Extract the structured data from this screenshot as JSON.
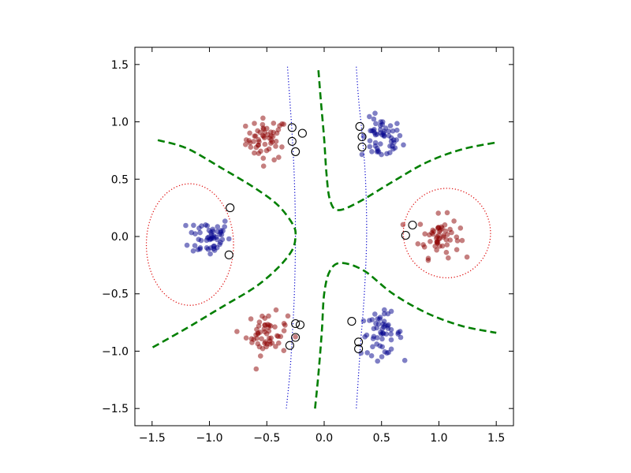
{
  "chart_data": {
    "type": "scatter",
    "title": "",
    "xlabel": "",
    "ylabel": "",
    "xlim": [
      -1.65,
      1.65
    ],
    "ylim": [
      -1.65,
      1.65
    ],
    "xticks": [
      -1.5,
      -1.0,
      -0.5,
      0.0,
      0.5,
      1.0,
      1.5
    ],
    "yticks": [
      -1.5,
      -1.0,
      -0.5,
      0.0,
      0.5,
      1.0,
      1.5
    ],
    "xtick_labels": [
      "−1.5",
      "−1.0",
      "−0.5",
      "0.0",
      "0.5",
      "1.0",
      "1.5"
    ],
    "ytick_labels": [
      "−1.5",
      "−1.0",
      "−0.5",
      "0.0",
      "0.5",
      "1.0",
      "1.5"
    ],
    "grid": false,
    "colors": {
      "red": "#8b0000",
      "blue": "#00008b",
      "decision": "#007f00",
      "margin_red": "#dd0000",
      "margin_blue": "#0000cc"
    },
    "clusters": [
      {
        "class": "red",
        "center": [
          -0.5,
          0.85
        ],
        "count": 55
      },
      {
        "class": "blue",
        "center": [
          0.5,
          0.85
        ],
        "count": 55
      },
      {
        "class": "blue",
        "center": [
          -1.0,
          0.0
        ],
        "count": 55
      },
      {
        "class": "red",
        "center": [
          1.0,
          0.0
        ],
        "count": 55
      },
      {
        "class": "red",
        "center": [
          -0.5,
          -0.85
        ],
        "count": 55
      },
      {
        "class": "blue",
        "center": [
          0.5,
          -0.85
        ],
        "count": 55
      }
    ],
    "support_vectors": [
      [
        -0.28,
        0.95
      ],
      [
        -0.19,
        0.9
      ],
      [
        -0.28,
        0.83
      ],
      [
        -0.25,
        0.74
      ],
      [
        0.31,
        0.96
      ],
      [
        0.33,
        0.87
      ],
      [
        0.33,
        0.78
      ],
      [
        -0.82,
        0.25
      ],
      [
        -0.83,
        -0.16
      ],
      [
        0.77,
        0.1
      ],
      [
        0.71,
        0.01
      ],
      [
        -0.25,
        -0.76
      ],
      [
        -0.21,
        -0.77
      ],
      [
        -0.25,
        -0.88
      ],
      [
        -0.3,
        -0.95
      ],
      [
        0.24,
        -0.74
      ],
      [
        0.3,
        -0.92
      ],
      [
        0.3,
        -0.98
      ]
    ],
    "decision_boundary": [
      [
        [
          -1.45,
          0.84
        ],
        [
          -1.2,
          0.77
        ],
        [
          -0.9,
          0.6
        ],
        [
          -0.6,
          0.42
        ],
        [
          -0.4,
          0.27
        ],
        [
          -0.27,
          0.1
        ],
        [
          -0.25,
          0.0
        ],
        [
          -0.28,
          -0.12
        ],
        [
          -0.4,
          -0.27
        ],
        [
          -0.6,
          -0.44
        ],
        [
          -0.9,
          -0.62
        ],
        [
          -1.2,
          -0.8
        ],
        [
          -1.5,
          -0.97
        ]
      ],
      [
        [
          -0.05,
          1.45
        ],
        [
          -0.03,
          1.2
        ],
        [
          0.0,
          0.85
        ],
        [
          0.02,
          0.55
        ],
        [
          0.05,
          0.32
        ],
        [
          0.12,
          0.23
        ],
        [
          0.3,
          0.3
        ],
        [
          0.6,
          0.48
        ],
        [
          0.9,
          0.65
        ],
        [
          1.2,
          0.76
        ],
        [
          1.5,
          0.82
        ]
      ],
      [
        [
          -0.08,
          -1.5
        ],
        [
          -0.05,
          -1.2
        ],
        [
          -0.02,
          -0.82
        ],
        [
          0.0,
          -0.5
        ],
        [
          0.05,
          -0.3
        ],
        [
          0.15,
          -0.23
        ],
        [
          0.35,
          -0.3
        ],
        [
          0.6,
          -0.5
        ],
        [
          0.9,
          -0.67
        ],
        [
          1.2,
          -0.78
        ],
        [
          1.5,
          -0.84
        ]
      ]
    ],
    "margin_curves_blue": [
      [
        [
          -0.32,
          1.48
        ],
        [
          -0.3,
          1.2
        ],
        [
          -0.28,
          0.9
        ],
        [
          -0.26,
          0.5
        ],
        [
          -0.25,
          0.0
        ],
        [
          -0.26,
          -0.5
        ],
        [
          -0.28,
          -0.9
        ],
        [
          -0.3,
          -1.2
        ],
        [
          -0.33,
          -1.5
        ]
      ],
      [
        [
          0.28,
          1.48
        ],
        [
          0.3,
          1.2
        ],
        [
          0.33,
          0.9
        ],
        [
          0.36,
          0.5
        ],
        [
          0.37,
          0.0
        ],
        [
          0.35,
          -0.5
        ],
        [
          0.32,
          -0.9
        ],
        [
          0.3,
          -1.2
        ],
        [
          0.28,
          -1.5
        ]
      ]
    ],
    "margin_ellipses_red": [
      {
        "center": [
          -1.17,
          -0.07
        ],
        "rx": 0.38,
        "ry": 0.53
      },
      {
        "center": [
          1.07,
          0.03
        ],
        "rx": 0.38,
        "ry": 0.39
      }
    ]
  }
}
